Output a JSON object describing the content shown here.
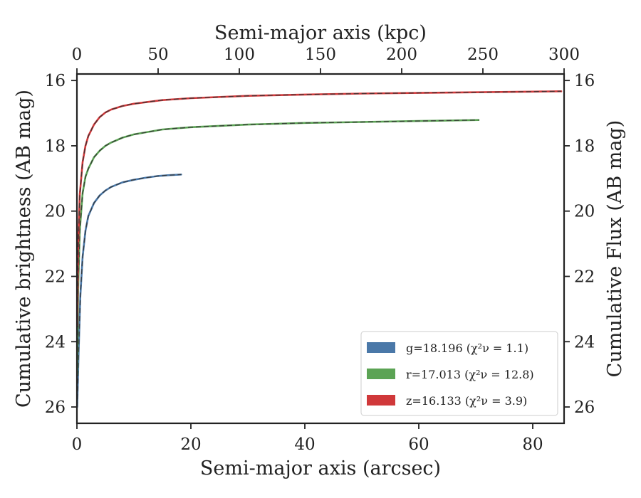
{
  "chart_data": {
    "type": "line",
    "xlabel": "Semi-major axis (arcsec)",
    "ylabel": "Cumulative brightness (AB mag)",
    "top_xlabel": "Semi-major axis (kpc)",
    "right_ylabel": "Cumulative Flux (AB mag)",
    "xlim": [
      0,
      85.5
    ],
    "ylim": [
      26.5,
      15.8
    ],
    "y_inverted": true,
    "top_xlim": [
      0,
      300
    ],
    "x_ticks": [
      0,
      20,
      40,
      60,
      80
    ],
    "y_ticks": [
      16,
      18,
      20,
      22,
      24,
      26
    ],
    "top_x_ticks": [
      0,
      50,
      100,
      150,
      200,
      250,
      300
    ],
    "x_tick_labels": [
      "0",
      "20",
      "40",
      "60",
      "80"
    ],
    "y_tick_labels": [
      "16",
      "18",
      "20",
      "22",
      "24",
      "26"
    ],
    "top_x_tick_labels": [
      "0",
      "50",
      "100",
      "150",
      "200",
      "250",
      "300"
    ],
    "grid": false,
    "legend_position": "lower-right",
    "series": [
      {
        "name": "g=18.196 (χ²ν = 1.1)",
        "color": "#4a78a8",
        "dashed_model": true,
        "x": [
          0.05,
          0.3,
          0.6,
          1.0,
          1.5,
          2,
          3,
          4,
          5,
          6,
          8,
          10,
          12,
          14,
          16,
          18.3
        ],
        "y": [
          26.0,
          24.3,
          22.6,
          21.4,
          20.6,
          20.15,
          19.75,
          19.52,
          19.37,
          19.26,
          19.12,
          19.04,
          18.98,
          18.93,
          18.9,
          18.88
        ]
      },
      {
        "name": "r=17.013 (χ²ν = 12.8)",
        "color": "#5ba354",
        "dashed_model": true,
        "x": [
          0.05,
          0.2,
          0.5,
          1.0,
          1.5,
          2,
          3,
          4,
          5,
          6,
          8,
          10,
          15,
          20,
          30,
          40,
          50,
          60,
          70.5
        ],
        "y": [
          25.0,
          22.5,
          20.6,
          19.45,
          18.95,
          18.7,
          18.35,
          18.15,
          18.0,
          17.9,
          17.75,
          17.65,
          17.5,
          17.43,
          17.35,
          17.3,
          17.27,
          17.24,
          17.21
        ]
      },
      {
        "name": "z=16.133 (χ²ν = 3.9)",
        "color": "#d0383a",
        "dashed_model": true,
        "x": [
          0.05,
          0.2,
          0.5,
          1.0,
          1.5,
          2,
          3,
          4,
          5,
          6,
          8,
          10,
          15,
          20,
          30,
          40,
          50,
          60,
          70,
          80,
          85
        ],
        "y": [
          23.5,
          21.2,
          19.5,
          18.5,
          18.0,
          17.7,
          17.35,
          17.12,
          16.98,
          16.89,
          16.78,
          16.71,
          16.6,
          16.54,
          16.47,
          16.43,
          16.4,
          16.38,
          16.36,
          16.34,
          16.33
        ]
      }
    ]
  }
}
